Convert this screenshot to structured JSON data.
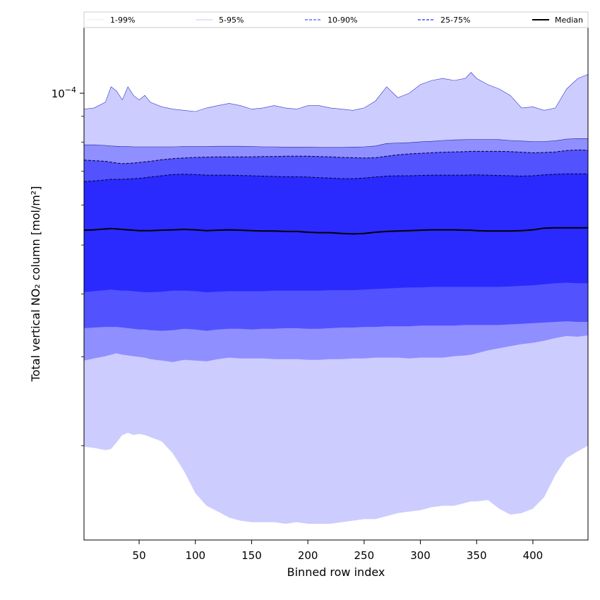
{
  "chart_data": {
    "type": "area",
    "xlabel": "Binned row index",
    "ylabel": "Total vertical NO₂ column [mol/m²]",
    "xlim": [
      1,
      449
    ],
    "ylim": [
      1.3e-05,
      0.000135
    ],
    "yscale": "log",
    "x_ticks": [
      50,
      100,
      150,
      200,
      250,
      300,
      350,
      400
    ],
    "y_tick_label": {
      "value": 0.0001,
      "base": "10",
      "exponent": "−4"
    },
    "legend_placement": "top",
    "legend": [
      {
        "name": "1-99%",
        "style": "dotted"
      },
      {
        "name": "5-95%",
        "style": "dotted"
      },
      {
        "name": "10-90%",
        "style": "dashed"
      },
      {
        "name": "25-75%",
        "style": "dashed"
      },
      {
        "name": "Median",
        "style": "solid"
      }
    ],
    "colors": {
      "band_1_99": "#ccccff",
      "band_5_95": "#8f8fff",
      "band_10_90": "#5252ff",
      "band_25_75": "#2a2aff",
      "median": "#000000"
    },
    "x": [
      1,
      10,
      20,
      25,
      30,
      35,
      40,
      45,
      50,
      55,
      60,
      70,
      80,
      90,
      100,
      110,
      120,
      130,
      140,
      150,
      160,
      170,
      180,
      190,
      200,
      210,
      220,
      230,
      240,
      250,
      260,
      270,
      280,
      290,
      300,
      310,
      320,
      330,
      340,
      345,
      350,
      360,
      370,
      380,
      390,
      400,
      410,
      420,
      430,
      440,
      449
    ],
    "series": [
      {
        "name": "1-99%",
        "lower": [
          1.99e-05,
          1.98e-05,
          1.96e-05,
          1.97e-05,
          2.03e-05,
          2.1e-05,
          2.12e-05,
          2.1e-05,
          2.11e-05,
          2.1e-05,
          2.08e-05,
          2.04e-05,
          1.93e-05,
          1.78e-05,
          1.61e-05,
          1.52e-05,
          1.48e-05,
          1.44e-05,
          1.42e-05,
          1.41e-05,
          1.41e-05,
          1.41e-05,
          1.4e-05,
          1.41e-05,
          1.4e-05,
          1.4e-05,
          1.4e-05,
          1.41e-05,
          1.42e-05,
          1.43e-05,
          1.43e-05,
          1.45e-05,
          1.47e-05,
          1.48e-05,
          1.49e-05,
          1.51e-05,
          1.52e-05,
          1.52e-05,
          1.54e-05,
          1.55e-05,
          1.55e-05,
          1.56e-05,
          1.5e-05,
          1.46e-05,
          1.47e-05,
          1.5e-05,
          1.58e-05,
          1.75e-05,
          1.89e-05,
          1.95e-05,
          2e-05
        ],
        "upper": [
          9.3e-05,
          9.35e-05,
          9.6e-05,
          0.000103,
          0.000101,
          9.7e-05,
          0.000103,
          9.9e-05,
          9.7e-05,
          9.9e-05,
          9.6e-05,
          9.4e-05,
          9.3e-05,
          9.25e-05,
          9.2e-05,
          9.35e-05,
          9.45e-05,
          9.55e-05,
          9.45e-05,
          9.3e-05,
          9.35e-05,
          9.45e-05,
          9.35e-05,
          9.3e-05,
          9.45e-05,
          9.45e-05,
          9.35e-05,
          9.3e-05,
          9.25e-05,
          9.35e-05,
          9.65e-05,
          0.000103,
          9.8e-05,
          0.0001,
          0.000104,
          0.000106,
          0.000107,
          0.000106,
          0.000107,
          0.00011,
          0.000107,
          0.000104,
          0.000102,
          9.9e-05,
          9.35e-05,
          9.4e-05,
          9.25e-05,
          9.35e-05,
          0.000102,
          0.000107,
          0.000109
        ]
      },
      {
        "name": "5-95%",
        "lower": [
          2.95e-05,
          2.98e-05,
          3.01e-05,
          3.03e-05,
          3.05e-05,
          3.03e-05,
          3.02e-05,
          3.01e-05,
          3e-05,
          2.99e-05,
          2.97e-05,
          2.95e-05,
          2.93e-05,
          2.96e-05,
          2.95e-05,
          2.94e-05,
          2.97e-05,
          2.99e-05,
          2.98e-05,
          2.98e-05,
          2.98e-05,
          2.97e-05,
          2.97e-05,
          2.97e-05,
          2.96e-05,
          2.96e-05,
          2.97e-05,
          2.97e-05,
          2.98e-05,
          2.98e-05,
          2.99e-05,
          2.99e-05,
          2.99e-05,
          2.98e-05,
          2.99e-05,
          2.99e-05,
          2.99e-05,
          3.01e-05,
          3.02e-05,
          3.03e-05,
          3.05e-05,
          3.09e-05,
          3.12e-05,
          3.15e-05,
          3.18e-05,
          3.2e-05,
          3.23e-05,
          3.27e-05,
          3.3e-05,
          3.29e-05,
          3.31e-05
        ],
        "upper": [
          7.9e-05,
          7.9e-05,
          7.88e-05,
          7.86e-05,
          7.85e-05,
          7.84e-05,
          7.84e-05,
          7.83e-05,
          7.83e-05,
          7.83e-05,
          7.83e-05,
          7.83e-05,
          7.83e-05,
          7.84e-05,
          7.84e-05,
          7.84e-05,
          7.85e-05,
          7.85e-05,
          7.85e-05,
          7.84e-05,
          7.83e-05,
          7.83e-05,
          7.82e-05,
          7.82e-05,
          7.82e-05,
          7.81e-05,
          7.81e-05,
          7.81e-05,
          7.82e-05,
          7.83e-05,
          7.86e-05,
          7.95e-05,
          7.97e-05,
          7.98e-05,
          8.01e-05,
          8.03e-05,
          8.06e-05,
          8.08e-05,
          8.09e-05,
          8.1e-05,
          8.1e-05,
          8.1e-05,
          8.09e-05,
          8.06e-05,
          8.04e-05,
          8.02e-05,
          8.02e-05,
          8.05e-05,
          8.11e-05,
          8.13e-05,
          8.13e-05
        ]
      },
      {
        "name": "10-90%",
        "lower": [
          3.42e-05,
          3.43e-05,
          3.44e-05,
          3.44e-05,
          3.44e-05,
          3.43e-05,
          3.42e-05,
          3.41e-05,
          3.4e-05,
          3.4e-05,
          3.39e-05,
          3.38e-05,
          3.39e-05,
          3.41e-05,
          3.4e-05,
          3.38e-05,
          3.4e-05,
          3.41e-05,
          3.41e-05,
          3.4e-05,
          3.41e-05,
          3.41e-05,
          3.42e-05,
          3.42e-05,
          3.41e-05,
          3.41e-05,
          3.42e-05,
          3.43e-05,
          3.43e-05,
          3.44e-05,
          3.44e-05,
          3.45e-05,
          3.45e-05,
          3.45e-05,
          3.46e-05,
          3.46e-05,
          3.46e-05,
          3.46e-05,
          3.47e-05,
          3.47e-05,
          3.47e-05,
          3.47e-05,
          3.47e-05,
          3.48e-05,
          3.49e-05,
          3.5e-05,
          3.51e-05,
          3.52e-05,
          3.53e-05,
          3.52e-05,
          3.52e-05
        ],
        "upper": [
          7.37e-05,
          7.35e-05,
          7.33e-05,
          7.3e-05,
          7.27e-05,
          7.25e-05,
          7.26e-05,
          7.27e-05,
          7.29e-05,
          7.31e-05,
          7.33e-05,
          7.38e-05,
          7.42e-05,
          7.44e-05,
          7.46e-05,
          7.47e-05,
          7.48e-05,
          7.48e-05,
          7.48e-05,
          7.48e-05,
          7.49e-05,
          7.49e-05,
          7.5e-05,
          7.5e-05,
          7.5e-05,
          7.49e-05,
          7.48e-05,
          7.46e-05,
          7.45e-05,
          7.44e-05,
          7.45e-05,
          7.5e-05,
          7.55e-05,
          7.58e-05,
          7.6e-05,
          7.62e-05,
          7.64e-05,
          7.65e-05,
          7.66e-05,
          7.67e-05,
          7.67e-05,
          7.67e-05,
          7.67e-05,
          7.66e-05,
          7.64e-05,
          7.62e-05,
          7.63e-05,
          7.65e-05,
          7.7e-05,
          7.72e-05,
          7.71e-05
        ]
      },
      {
        "name": "25-75%",
        "lower": [
          4.03e-05,
          4.05e-05,
          4.07e-05,
          4.08e-05,
          4.07e-05,
          4.06e-05,
          4.06e-05,
          4.05e-05,
          4.04e-05,
          4.03e-05,
          4.03e-05,
          4.04e-05,
          4.06e-05,
          4.06e-05,
          4.05e-05,
          4.03e-05,
          4.04e-05,
          4.05e-05,
          4.05e-05,
          4.05e-05,
          4.05e-05,
          4.06e-05,
          4.06e-05,
          4.06e-05,
          4.06e-05,
          4.06e-05,
          4.07e-05,
          4.07e-05,
          4.07e-05,
          4.08e-05,
          4.09e-05,
          4.1e-05,
          4.11e-05,
          4.12e-05,
          4.12e-05,
          4.13e-05,
          4.13e-05,
          4.13e-05,
          4.13e-05,
          4.13e-05,
          4.13e-05,
          4.13e-05,
          4.13e-05,
          4.14e-05,
          4.15e-05,
          4.16e-05,
          4.18e-05,
          4.2e-05,
          4.21e-05,
          4.2e-05,
          4.2e-05
        ],
        "upper": [
          6.68e-05,
          6.7e-05,
          6.73e-05,
          6.75e-05,
          6.75e-05,
          6.75e-05,
          6.76e-05,
          6.77e-05,
          6.78e-05,
          6.8e-05,
          6.82e-05,
          6.86e-05,
          6.9e-05,
          6.91e-05,
          6.9e-05,
          6.88e-05,
          6.88e-05,
          6.88e-05,
          6.87e-05,
          6.86e-05,
          6.85e-05,
          6.84e-05,
          6.83e-05,
          6.83e-05,
          6.82e-05,
          6.8e-05,
          6.79e-05,
          6.77e-05,
          6.77e-05,
          6.79e-05,
          6.82e-05,
          6.85e-05,
          6.86e-05,
          6.86e-05,
          6.87e-05,
          6.88e-05,
          6.88e-05,
          6.88e-05,
          6.88e-05,
          6.89e-05,
          6.89e-05,
          6.88e-05,
          6.87e-05,
          6.86e-05,
          6.85e-05,
          6.86e-05,
          6.89e-05,
          6.91e-05,
          6.92e-05,
          6.92e-05,
          6.92e-05
        ]
      },
      {
        "name": "Median",
        "values": [
          5.35e-05,
          5.36e-05,
          5.38e-05,
          5.39e-05,
          5.38e-05,
          5.37e-05,
          5.36e-05,
          5.35e-05,
          5.34e-05,
          5.34e-05,
          5.34e-05,
          5.35e-05,
          5.36e-05,
          5.37e-05,
          5.36e-05,
          5.34e-05,
          5.35e-05,
          5.36e-05,
          5.35e-05,
          5.34e-05,
          5.33e-05,
          5.33e-05,
          5.32e-05,
          5.32e-05,
          5.3e-05,
          5.29e-05,
          5.29e-05,
          5.27e-05,
          5.26e-05,
          5.27e-05,
          5.3e-05,
          5.32e-05,
          5.33e-05,
          5.34e-05,
          5.35e-05,
          5.36e-05,
          5.36e-05,
          5.36e-05,
          5.35e-05,
          5.35e-05,
          5.34e-05,
          5.33e-05,
          5.33e-05,
          5.33e-05,
          5.34e-05,
          5.36e-05,
          5.4e-05,
          5.41e-05,
          5.41e-05,
          5.41e-05,
          5.41e-05
        ]
      }
    ]
  }
}
